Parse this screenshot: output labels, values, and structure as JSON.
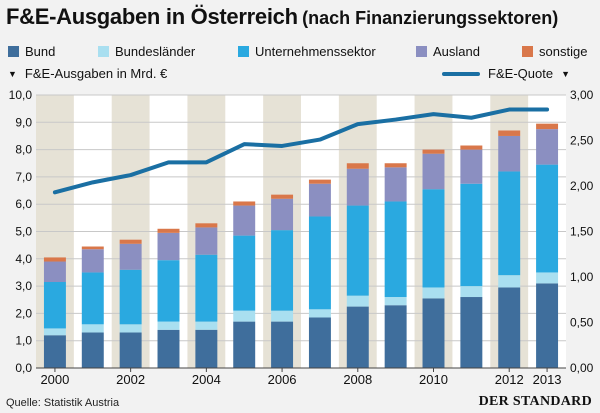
{
  "title": "F&E-Ausgaben in Österreich",
  "subtitle": "(nach Finanzierungssektoren)",
  "ylabel_left": "F&E-Ausgaben in Mrd. €",
  "ylabel_right": "F&E-Quote",
  "source": "Quelle: Statistik Austria",
  "publisher": "DER STANDARD",
  "chart_data": {
    "type": "bar",
    "stacked": true,
    "categories": [
      "2000",
      "2001",
      "2002",
      "2003",
      "2004",
      "2005",
      "2006",
      "2007",
      "2008",
      "2009",
      "2010",
      "2011",
      "2012",
      "2013"
    ],
    "x_tick_labels": [
      "2000",
      "2002",
      "2004",
      "2006",
      "2008",
      "2010",
      "2012",
      "2013"
    ],
    "ylabel": "F&E-Ausgaben in Mrd. €",
    "ylim": [
      0,
      10
    ],
    "y_ticks": [
      "0,0",
      "1,0",
      "2,0",
      "3,0",
      "4,0",
      "5,0",
      "6,0",
      "7,0",
      "8,0",
      "9,0",
      "10,0"
    ],
    "series": [
      {
        "name": "Bund",
        "color": "#3f6e9c",
        "values": [
          1.2,
          1.3,
          1.3,
          1.4,
          1.4,
          1.7,
          1.7,
          1.85,
          2.25,
          2.3,
          2.55,
          2.6,
          2.95,
          3.1
        ]
      },
      {
        "name": "Bundesländer",
        "color": "#a9dff0",
        "values": [
          0.25,
          0.3,
          0.3,
          0.3,
          0.3,
          0.4,
          0.4,
          0.3,
          0.4,
          0.3,
          0.4,
          0.4,
          0.45,
          0.4
        ]
      },
      {
        "name": "Unternehmenssektor",
        "color": "#2aa9e0",
        "values": [
          1.7,
          1.9,
          2.0,
          2.25,
          2.45,
          2.75,
          2.95,
          3.4,
          3.3,
          3.5,
          3.6,
          3.75,
          3.8,
          3.95
        ]
      },
      {
        "name": "Ausland",
        "color": "#8b8fc1",
        "values": [
          0.75,
          0.85,
          0.95,
          1.0,
          1.0,
          1.1,
          1.15,
          1.2,
          1.35,
          1.25,
          1.3,
          1.25,
          1.3,
          1.3
        ]
      },
      {
        "name": "sonstige",
        "color": "#d9774a",
        "values": [
          0.15,
          0.1,
          0.15,
          0.15,
          0.15,
          0.15,
          0.15,
          0.15,
          0.2,
          0.15,
          0.15,
          0.15,
          0.2,
          0.2
        ]
      }
    ],
    "secondary_axis": {
      "name": "F&E-Quote",
      "ylim": [
        0,
        3
      ],
      "y_ticks": [
        "0,00",
        "0,50",
        "1,00",
        "1,50",
        "2,00",
        "2,50",
        "3,00"
      ],
      "type": "line",
      "color": "#1a6fa3",
      "values": [
        1.93,
        2.04,
        2.12,
        2.26,
        2.26,
        2.46,
        2.44,
        2.51,
        2.68,
        2.73,
        2.79,
        2.75,
        2.84,
        2.84
      ]
    },
    "alternating_background": true,
    "grid": true,
    "legend_position": "top"
  }
}
